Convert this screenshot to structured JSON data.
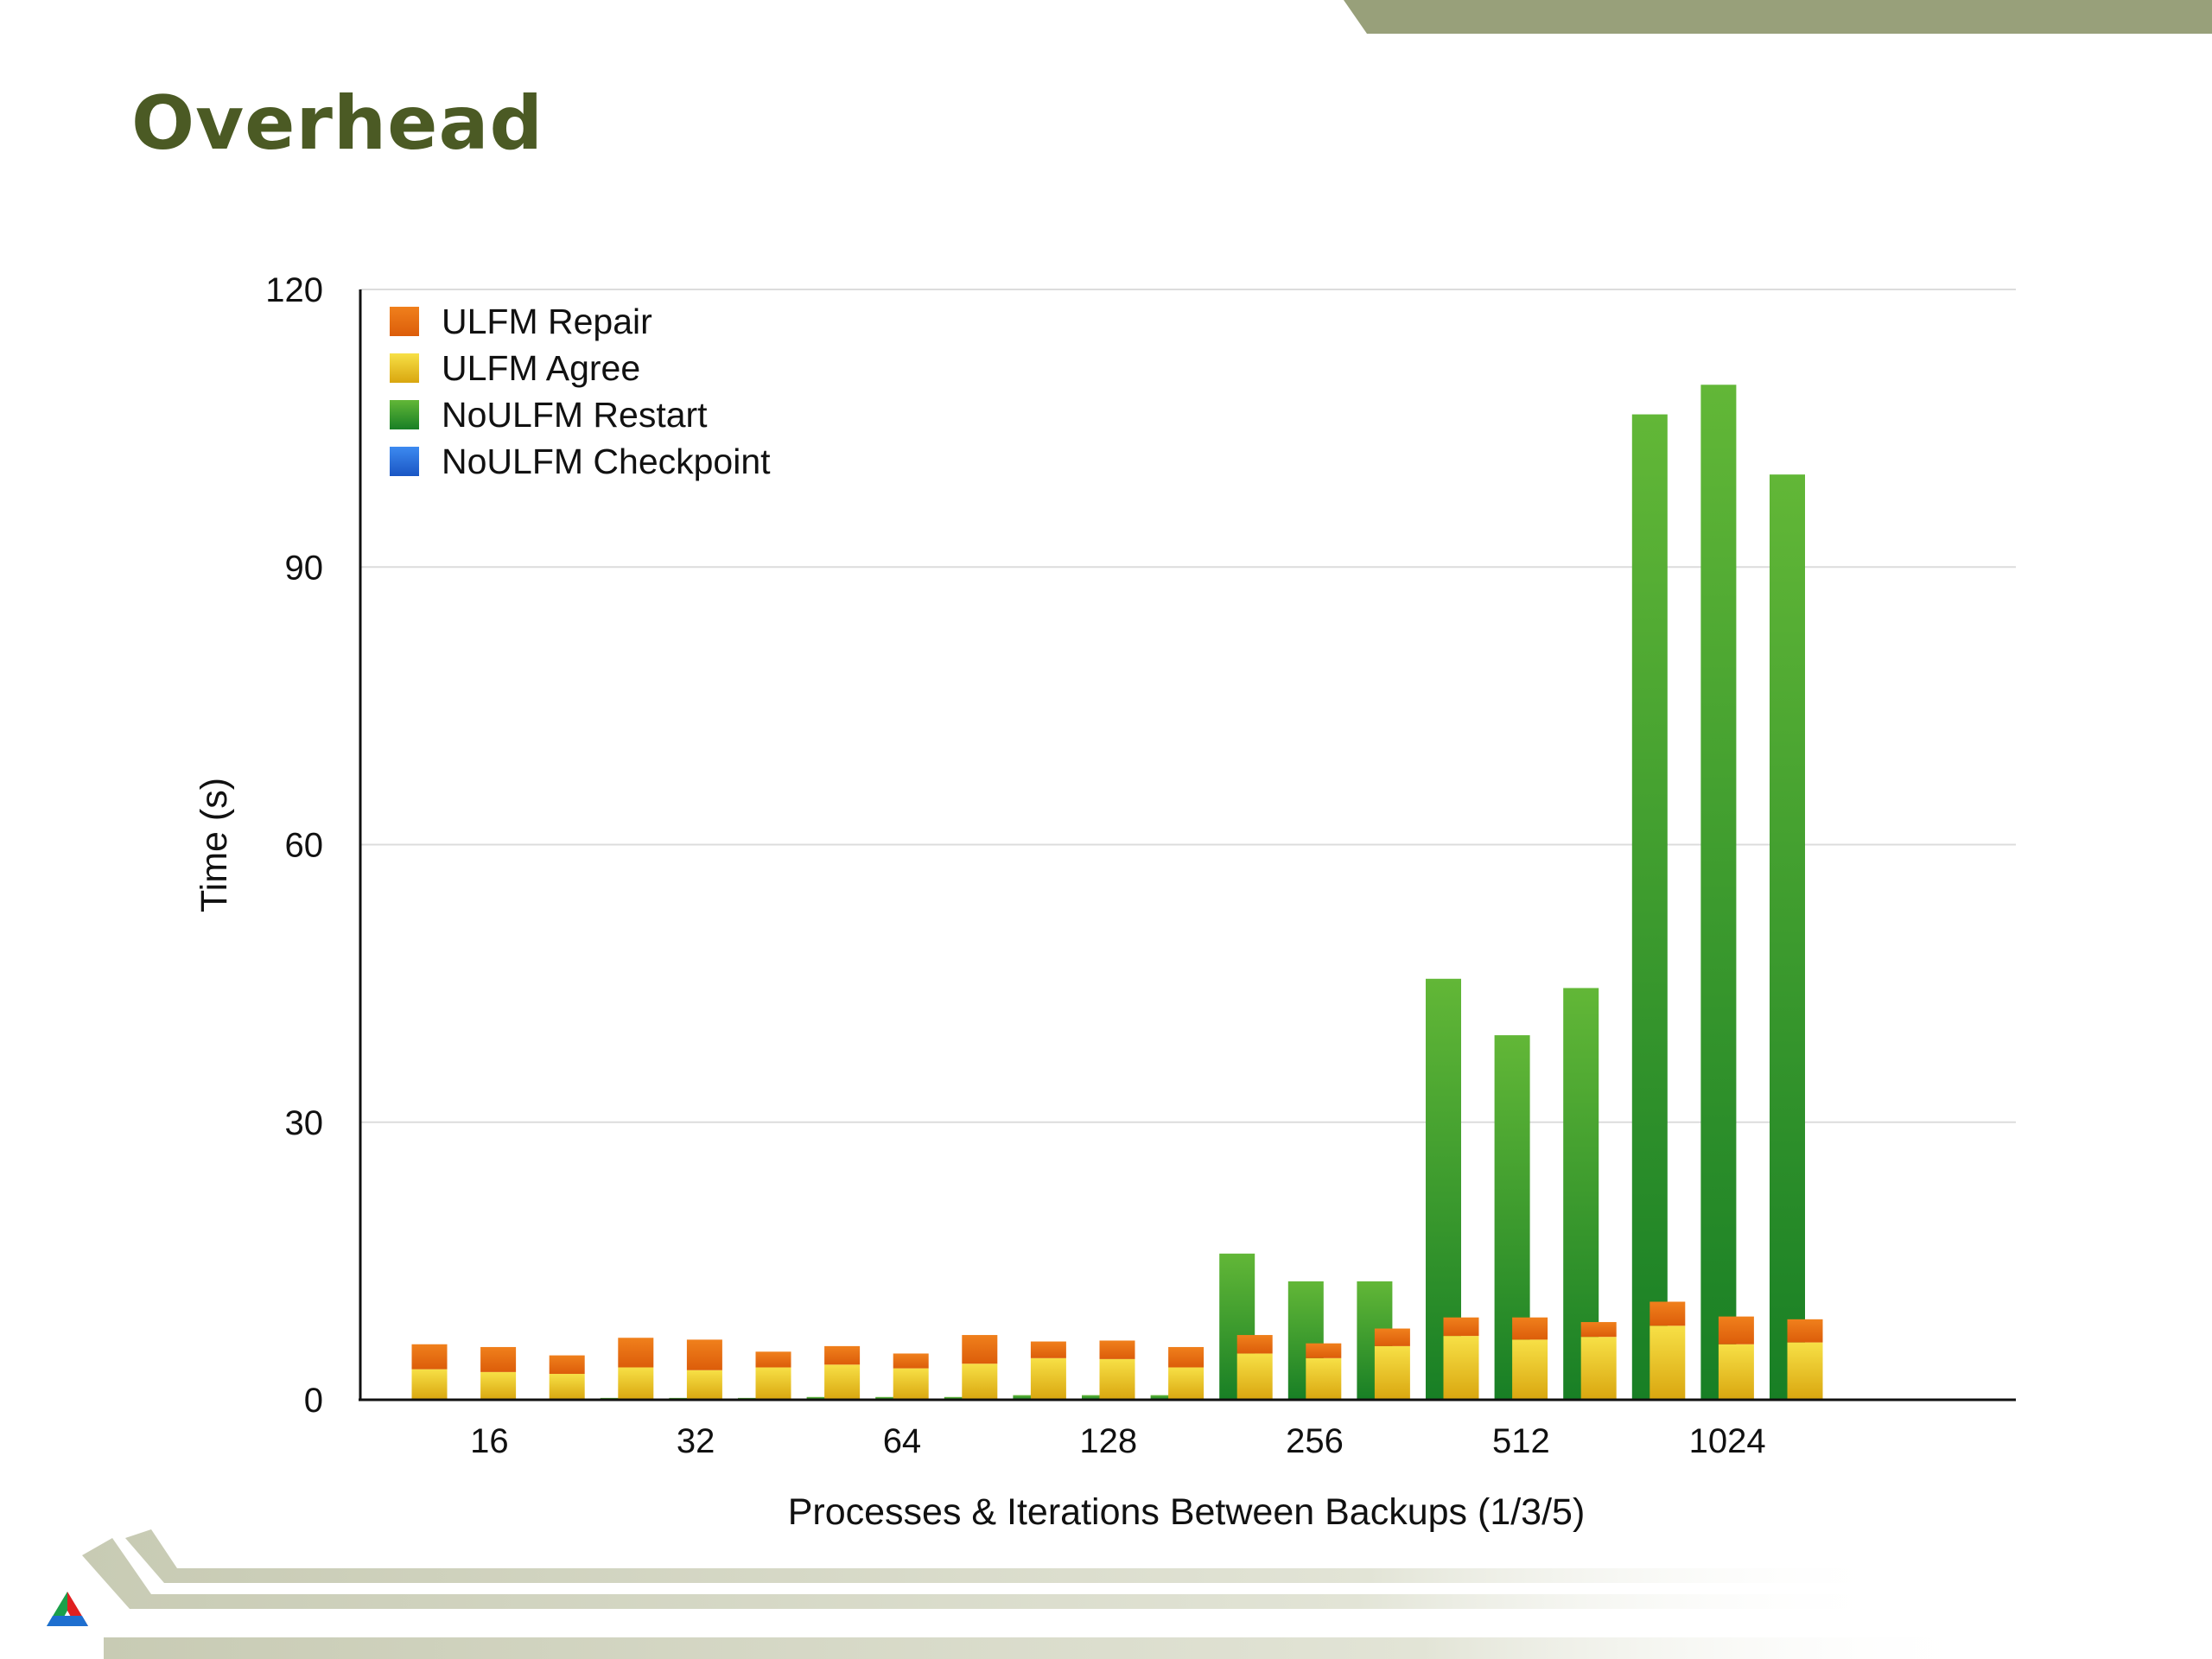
{
  "slide": {
    "title": "Overhead"
  },
  "chart_data": {
    "type": "bar",
    "stacked": true,
    "title": "",
    "xlabel": "Processes & Iterations Between Backups (1/3/5)",
    "ylabel": "Time (s)",
    "ylim": [
      0,
      120
    ],
    "yticks": [
      0,
      30,
      60,
      90,
      120
    ],
    "grid": true,
    "legend_position": "top-left",
    "groups": [
      "16",
      "32",
      "64",
      "128",
      "256",
      "512",
      "1024"
    ],
    "series": [
      {
        "name": "ULFM Repair",
        "color": "#e8740e"
      },
      {
        "name": "ULFM Agree",
        "color": "#e8c21a"
      },
      {
        "name": "NoULFM Restart",
        "color": "#2f9a2a"
      },
      {
        "name": "NoULFM Checkpoint",
        "color": "#2b6fd6"
      }
    ],
    "bars": [
      {
        "group": "16",
        "backups": 1,
        "noulfm_checkpoint": 0.0,
        "noulfm_restart": 0.0,
        "ulfm_agree": 3.3,
        "ulfm_repair": 2.7
      },
      {
        "group": "16",
        "backups": 3,
        "noulfm_checkpoint": 0.0,
        "noulfm_restart": 0.0,
        "ulfm_agree": 3.0,
        "ulfm_repair": 2.7
      },
      {
        "group": "16",
        "backups": 5,
        "noulfm_checkpoint": 0.0,
        "noulfm_restart": 0.0,
        "ulfm_agree": 2.8,
        "ulfm_repair": 2.0
      },
      {
        "group": "32",
        "backups": 1,
        "noulfm_checkpoint": 0.0,
        "noulfm_restart": 0.2,
        "ulfm_agree": 3.5,
        "ulfm_repair": 3.2
      },
      {
        "group": "32",
        "backups": 3,
        "noulfm_checkpoint": 0.0,
        "noulfm_restart": 0.2,
        "ulfm_agree": 3.2,
        "ulfm_repair": 3.3
      },
      {
        "group": "32",
        "backups": 5,
        "noulfm_checkpoint": 0.0,
        "noulfm_restart": 0.2,
        "ulfm_agree": 3.5,
        "ulfm_repair": 1.7
      },
      {
        "group": "64",
        "backups": 1,
        "noulfm_checkpoint": 0.0,
        "noulfm_restart": 0.3,
        "ulfm_agree": 3.8,
        "ulfm_repair": 2.0
      },
      {
        "group": "64",
        "backups": 3,
        "noulfm_checkpoint": 0.0,
        "noulfm_restart": 0.3,
        "ulfm_agree": 3.4,
        "ulfm_repair": 1.6
      },
      {
        "group": "64",
        "backups": 5,
        "noulfm_checkpoint": 0.0,
        "noulfm_restart": 0.3,
        "ulfm_agree": 3.9,
        "ulfm_repair": 3.1
      },
      {
        "group": "128",
        "backups": 1,
        "noulfm_checkpoint": 0.0,
        "noulfm_restart": 0.5,
        "ulfm_agree": 4.5,
        "ulfm_repair": 1.8
      },
      {
        "group": "128",
        "backups": 3,
        "noulfm_checkpoint": 0.0,
        "noulfm_restart": 0.5,
        "ulfm_agree": 4.4,
        "ulfm_repair": 2.0
      },
      {
        "group": "128",
        "backups": 5,
        "noulfm_checkpoint": 0.0,
        "noulfm_restart": 0.5,
        "ulfm_agree": 3.5,
        "ulfm_repair": 2.2
      },
      {
        "group": "256",
        "backups": 1,
        "noulfm_checkpoint": 0.0,
        "noulfm_restart": 15.8,
        "ulfm_agree": 5.0,
        "ulfm_repair": 2.0
      },
      {
        "group": "256",
        "backups": 3,
        "noulfm_checkpoint": 0.0,
        "noulfm_restart": 12.8,
        "ulfm_agree": 4.5,
        "ulfm_repair": 1.6
      },
      {
        "group": "256",
        "backups": 5,
        "noulfm_checkpoint": 0.0,
        "noulfm_restart": 12.8,
        "ulfm_agree": 5.8,
        "ulfm_repair": 1.9
      },
      {
        "group": "512",
        "backups": 1,
        "noulfm_checkpoint": 0.0,
        "noulfm_restart": 45.5,
        "ulfm_agree": 6.9,
        "ulfm_repair": 2.0
      },
      {
        "group": "512",
        "backups": 3,
        "noulfm_checkpoint": 0.0,
        "noulfm_restart": 39.4,
        "ulfm_agree": 6.5,
        "ulfm_repair": 2.4
      },
      {
        "group": "512",
        "backups": 5,
        "noulfm_checkpoint": 0.0,
        "noulfm_restart": 44.5,
        "ulfm_agree": 6.8,
        "ulfm_repair": 1.6
      },
      {
        "group": "1024",
        "backups": 1,
        "noulfm_checkpoint": 0.0,
        "noulfm_restart": 106.5,
        "ulfm_agree": 8.0,
        "ulfm_repair": 2.6
      },
      {
        "group": "1024",
        "backups": 3,
        "noulfm_checkpoint": 0.0,
        "noulfm_restart": 109.7,
        "ulfm_agree": 6.0,
        "ulfm_repair": 3.0
      },
      {
        "group": "1024",
        "backups": 5,
        "noulfm_checkpoint": 0.0,
        "noulfm_restart": 100.0,
        "ulfm_agree": 6.2,
        "ulfm_repair": 2.5
      }
    ]
  }
}
